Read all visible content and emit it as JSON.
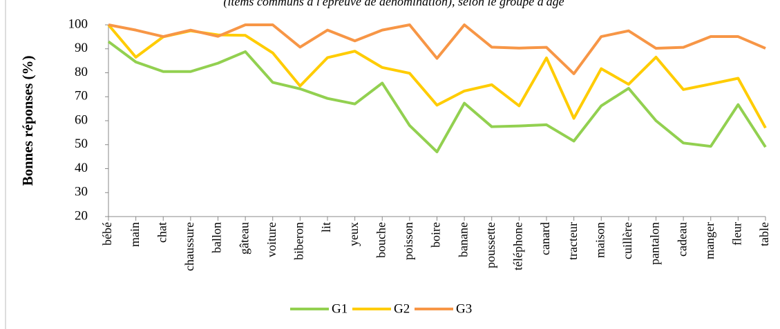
{
  "chart_data": {
    "type": "line",
    "subtitle": "(items communs à l'épreuve de dénomination), selon le groupe d'âge",
    "y_label": "Bonnes réponses (%)",
    "categories": [
      "bébé",
      "main",
      "chat",
      "chaussure",
      "ballon",
      "gâteau",
      "voiture",
      "biberon",
      "lit",
      "yeux",
      "bouche",
      "poisson",
      "boire",
      "banane",
      "poussette",
      "téléphone",
      "canard",
      "tracteur",
      "maison",
      "cuillère",
      "pantalon",
      "cadeau",
      "manger",
      "fleur",
      "table"
    ],
    "series": [
      {
        "name": "G1",
        "color": "#92d050",
        "values": [
          93,
          84.5,
          80.5,
          80.5,
          84,
          88.8,
          76,
          73.3,
          69.3,
          67,
          75.7,
          58,
          47,
          67.3,
          57.5,
          57.8,
          58.3,
          51.5,
          66.2,
          73.5,
          60,
          50.7,
          49.3,
          66.7,
          49
        ]
      },
      {
        "name": "G2",
        "color": "#ffcc00",
        "values": [
          100,
          86.5,
          95,
          97.5,
          95.8,
          95.6,
          88.3,
          74.5,
          86.3,
          89,
          82.2,
          79.8,
          66.5,
          72.4,
          75,
          66.2,
          86.2,
          61,
          81.7,
          75.2,
          86.5,
          73,
          75.3,
          77.7,
          57
        ]
      },
      {
        "name": "G3",
        "color": "#f79646",
        "values": [
          100,
          97.8,
          95.1,
          97.8,
          95.2,
          100,
          100,
          90.7,
          97.8,
          93.3,
          97.8,
          100,
          86,
          100,
          90.7,
          90.3,
          90.6,
          79.6,
          95.1,
          97.5,
          90.2,
          90.6,
          95.1,
          95.1,
          90.2
        ]
      }
    ],
    "ylim": [
      20,
      100
    ],
    "yticks": [
      20,
      30,
      40,
      50,
      60,
      70,
      80,
      90,
      100
    ],
    "grid": false,
    "legend": "bottom"
  }
}
